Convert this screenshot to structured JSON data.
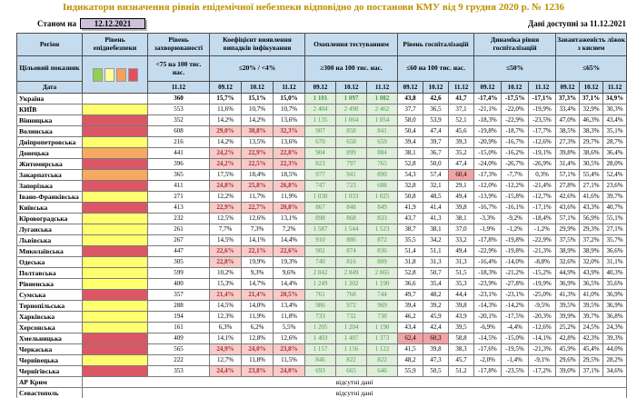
{
  "title": "Індикатори визначення рівнів епідемічної небезпеки відповідно до постанови КМУ від 9 грудня 2020 р. № 1236",
  "meta": {
    "as_of_label": "Станом на",
    "as_of_date": "12.12.2021",
    "available_label": "Дані доступні за",
    "available_date": "11.12.2021"
  },
  "colors": {
    "title_text": "#BF9000",
    "header_bg": "#C5DCEF",
    "date_box_bg": "#CCC1DA",
    "grid": "#7a7a7a",
    "risk_yellow": "#FFFF6E",
    "risk_orange": "#F5A962",
    "risk_red": "#DC5766",
    "good_bg": "#DFEFDA",
    "good_text": "#4E9B48",
    "bad_bg": "#F8CAC8",
    "bad_text": "#9C3734",
    "rose_bg": "#F2A3A3"
  },
  "legend_colors": [
    "#92D050",
    "#FFFF99",
    "#F4A258",
    "#E0505E"
  ],
  "columns": {
    "region": "Регіон",
    "risk_level": "Рівень епіднебезпеки",
    "target_row_label": "Цільовий показник",
    "date_row_label": "Дата",
    "groups": [
      {
        "label": "Рівень захворюваності",
        "target": "<75 на 100 тис. нас.",
        "dates": [
          "11.12"
        ]
      },
      {
        "label": "Коефіцієнт виявлення випадків інфікування",
        "target": "≤20% / <4%",
        "dates": [
          "09.12",
          "10.12",
          "11.12"
        ]
      },
      {
        "label": "Охоплення тестуванням",
        "target": "≥300 на 100 тис. нас.",
        "dates": [
          "09.12",
          "10.12",
          "11.12"
        ]
      },
      {
        "label": "Рівень госпіталізацій",
        "target": "≤60 на 100 тис. нас.",
        "dates": [
          "09.12",
          "10.12",
          "11.12"
        ]
      },
      {
        "label": "Динаміка рівня госпіталізацій",
        "target": "≤50%",
        "dates": [
          "09.12",
          "10.12",
          "11.12"
        ]
      },
      {
        "label": "Завантаженість ліжок з киснем",
        "target": "≤65%",
        "dates": [
          "09.12",
          "10.12",
          "11.12"
        ]
      }
    ]
  },
  "thresholds": {
    "coef_pink_above": 20,
    "hosp_pink_above": 60
  },
  "rows": [
    {
      "name": "Україна",
      "risk": "none",
      "bold": true,
      "incidence": "360",
      "coef": [
        "15,7%",
        "15,1%",
        "15,0%"
      ],
      "testing": [
        "1 101",
        "1 097",
        "1 082"
      ],
      "hosp": [
        "43,8",
        "42,6",
        "41,7"
      ],
      "dyn": [
        "-17,4%",
        "-17,5%",
        "-17,1%"
      ],
      "beds": [
        "37,3%",
        "37,1%",
        "34,9%"
      ]
    },
    {
      "name": "КИЇВ",
      "risk": "yellow",
      "bold": false,
      "incidence": "553",
      "coef": [
        "11,6%",
        "10,7%",
        "10,7%"
      ],
      "testing": [
        "2 404",
        "2 490",
        "2 462"
      ],
      "hosp": [
        "37,7",
        "36,5",
        "37,1"
      ],
      "dyn": [
        "-21,1%",
        "-22,0%",
        "-19,9%"
      ],
      "beds": [
        "33,4%",
        "32,9%",
        "30,3%"
      ]
    },
    {
      "name": "Вінницька",
      "risk": "red",
      "bold": false,
      "incidence": "352",
      "coef": [
        "14,2%",
        "14,2%",
        "13,6%"
      ],
      "testing": [
        "1 135",
        "1 064",
        "1 054"
      ],
      "hosp": [
        "58,0",
        "53,9",
        "52,1"
      ],
      "dyn": [
        "-18,3%",
        "-22,9%",
        "-23,5%"
      ],
      "beds": [
        "47,0%",
        "46,3%",
        "43,4%"
      ]
    },
    {
      "name": "Волинська",
      "risk": "red",
      "bold": false,
      "incidence": "608",
      "coef": [
        "29,0%",
        "30,8%",
        "32,3%"
      ],
      "testing": [
        "907",
        "858",
        "841"
      ],
      "hosp": [
        "50,4",
        "47,4",
        "45,6"
      ],
      "dyn": [
        "-19,8%",
        "-18,7%",
        "-17,7%"
      ],
      "beds": [
        "38,5%",
        "38,3%",
        "35,1%"
      ]
    },
    {
      "name": "Дніпропетровська",
      "risk": "yellow",
      "bold": false,
      "incidence": "216",
      "coef": [
        "14,2%",
        "13,5%",
        "13,6%"
      ],
      "testing": [
        "670",
        "658",
        "659"
      ],
      "hosp": [
        "39,4",
        "39,7",
        "39,3"
      ],
      "dyn": [
        "-20,9%",
        "-16,7%",
        "-12,6%"
      ],
      "beds": [
        "27,3%",
        "29,7%",
        "28,7%"
      ]
    },
    {
      "name": "Донецька",
      "risk": "orange",
      "bold": false,
      "incidence": "441",
      "coef": [
        "24,2%",
        "22,9%",
        "22,8%"
      ],
      "testing": [
        "904",
        "899",
        "884"
      ],
      "hosp": [
        "38,1",
        "36,7",
        "35,2"
      ],
      "dyn": [
        "-15,0%",
        "-16,2%",
        "-19,1%"
      ],
      "beds": [
        "39,8%",
        "38,6%",
        "36,4%"
      ]
    },
    {
      "name": "Житомирська",
      "risk": "red",
      "bold": false,
      "incidence": "396",
      "coef": [
        "24,2%",
        "22,5%",
        "22,3%"
      ],
      "testing": [
        "823",
        "797",
        "765"
      ],
      "hosp": [
        "52,8",
        "50,0",
        "47,4"
      ],
      "dyn": [
        "-24,0%",
        "-26,7%",
        "-26,9%"
      ],
      "beds": [
        "31,4%",
        "30,5%",
        "28,0%"
      ]
    },
    {
      "name": "Закарпатська",
      "risk": "orange",
      "bold": false,
      "incidence": "365",
      "coef": [
        "17,5%",
        "18,4%",
        "18,5%"
      ],
      "testing": [
        "977",
        "941",
        "890"
      ],
      "hosp": [
        "54,3",
        "57,4",
        "60,4"
      ],
      "dyn": [
        "-17,3%",
        "-7,7%",
        "0,3%"
      ],
      "beds": [
        "57,1%",
        "55,4%",
        "52,4%"
      ]
    },
    {
      "name": "Запорізька",
      "risk": "red",
      "bold": false,
      "incidence": "411",
      "coef": [
        "24,8%",
        "25,8%",
        "26,8%"
      ],
      "testing": [
        "747",
        "723",
        "688"
      ],
      "hosp": [
        "32,8",
        "32,1",
        "29,1"
      ],
      "dyn": [
        "-12,0%",
        "-12,2%",
        "-21,4%"
      ],
      "beds": [
        "27,8%",
        "27,1%",
        "23,6%"
      ]
    },
    {
      "name": "Івано-Франківська",
      "risk": "yellow",
      "bold": false,
      "incidence": "271",
      "coef": [
        "12,2%",
        "11,7%",
        "11,9%"
      ],
      "testing": [
        "1 038",
        "1 033",
        "1 025"
      ],
      "hosp": [
        "50,8",
        "48,5",
        "49,4"
      ],
      "dyn": [
        "-13,9%",
        "-15,8%",
        "-12,7%"
      ],
      "beds": [
        "42,6%",
        "41,6%",
        "39,7%"
      ]
    },
    {
      "name": "Київська",
      "risk": "red",
      "bold": false,
      "incidence": "413",
      "coef": [
        "22,9%",
        "22,7%",
        "20,8%"
      ],
      "testing": [
        "867",
        "848",
        "849"
      ],
      "hosp": [
        "41,9",
        "41,4",
        "39,8"
      ],
      "dyn": [
        "-16,7%",
        "-16,1%",
        "-17,1%"
      ],
      "beds": [
        "43,6%",
        "43,3%",
        "40,7%"
      ]
    },
    {
      "name": "Кіровоградська",
      "risk": "yellow",
      "bold": false,
      "incidence": "232",
      "coef": [
        "12,5%",
        "12,6%",
        "13,1%"
      ],
      "testing": [
        "898",
        "868",
        "833"
      ],
      "hosp": [
        "43,7",
        "41,3",
        "38,1"
      ],
      "dyn": [
        "-3,3%",
        "-9,2%",
        "-18,4%"
      ],
      "beds": [
        "57,1%",
        "56,9%",
        "55,1%"
      ]
    },
    {
      "name": "Луганська",
      "risk": "yellow",
      "bold": false,
      "incidence": "261",
      "coef": [
        "7,7%",
        "7,3%",
        "7,2%"
      ],
      "testing": [
        "1 587",
        "1 544",
        "1 523"
      ],
      "hosp": [
        "38,7",
        "38,1",
        "37,0"
      ],
      "dyn": [
        "-1,9%",
        "-1,2%",
        "-1,2%"
      ],
      "beds": [
        "29,9%",
        "29,3%",
        "27,1%"
      ]
    },
    {
      "name": "Львівська",
      "risk": "yellow",
      "bold": false,
      "incidence": "267",
      "coef": [
        "14,5%",
        "14,1%",
        "14,4%"
      ],
      "testing": [
        "910",
        "886",
        "872"
      ],
      "hosp": [
        "35,5",
        "34,2",
        "33,2"
      ],
      "dyn": [
        "-17,8%",
        "-19,8%",
        "-22,9%"
      ],
      "beds": [
        "37,5%",
        "37,2%",
        "35,7%"
      ]
    },
    {
      "name": "Миколаївська",
      "risk": "red",
      "bold": false,
      "incidence": "447",
      "coef": [
        "22,6%",
        "22,1%",
        "22,6%"
      ],
      "testing": [
        "902",
        "874",
        "836"
      ],
      "hosp": [
        "51,4",
        "51,1",
        "49,4"
      ],
      "dyn": [
        "-22,9%",
        "-19,8%",
        "-21,3%"
      ],
      "beds": [
        "38,9%",
        "38,9%",
        "36,6%"
      ]
    },
    {
      "name": "Одеська",
      "risk": "yellow",
      "bold": false,
      "incidence": "305",
      "coef": [
        "22,8%",
        "19,9%",
        "19,3%"
      ],
      "testing": [
        "740",
        "816",
        "809"
      ],
      "hosp": [
        "31,8",
        "31,3",
        "31,3"
      ],
      "dyn": [
        "-16,4%",
        "-14,0%",
        "-8,8%"
      ],
      "beds": [
        "32,6%",
        "32,0%",
        "31,1%"
      ]
    },
    {
      "name": "Полтавська",
      "risk": "yellow",
      "bold": false,
      "incidence": "599",
      "coef": [
        "10,2%",
        "9,3%",
        "9,6%"
      ],
      "testing": [
        "2 842",
        "2 849",
        "2 865"
      ],
      "hosp": [
        "52,8",
        "50,7",
        "51,5"
      ],
      "dyn": [
        "-18,3%",
        "-21,2%",
        "-15,2%"
      ],
      "beds": [
        "44,9%",
        "43,9%",
        "40,3%"
      ]
    },
    {
      "name": "Рівненська",
      "risk": "yellow",
      "bold": false,
      "incidence": "400",
      "coef": [
        "15,3%",
        "14,7%",
        "14,4%"
      ],
      "testing": [
        "1 249",
        "1 202",
        "1 190"
      ],
      "hosp": [
        "36,6",
        "35,4",
        "35,3"
      ],
      "dyn": [
        "-23,9%",
        "-27,8%",
        "-19,9%"
      ],
      "beds": [
        "36,9%",
        "36,5%",
        "35,6%"
      ]
    },
    {
      "name": "Сумська",
      "risk": "red",
      "bold": false,
      "incidence": "357",
      "coef": [
        "21,4%",
        "21,4%",
        "20,5%"
      ],
      "testing": [
        "761",
        "768",
        "744"
      ],
      "hosp": [
        "49,7",
        "48,2",
        "44,4"
      ],
      "dyn": [
        "-23,1%",
        "-23,1%",
        "-25,0%"
      ],
      "beds": [
        "41,3%",
        "41,0%",
        "36,9%"
      ]
    },
    {
      "name": "Тернопільська",
      "risk": "yellow",
      "bold": false,
      "incidence": "288",
      "coef": [
        "14,5%",
        "14,0%",
        "13,4%"
      ],
      "testing": [
        "986",
        "972",
        "969"
      ],
      "hosp": [
        "39,4",
        "39,2",
        "39,8"
      ],
      "dyn": [
        "-14,3%",
        "-14,2%",
        "-9,5%"
      ],
      "beds": [
        "39,5%",
        "39,5%",
        "36,9%"
      ]
    },
    {
      "name": "Харківська",
      "risk": "yellow",
      "bold": false,
      "incidence": "194",
      "coef": [
        "12,3%",
        "11,9%",
        "11,8%"
      ],
      "testing": [
        "733",
        "732",
        "738"
      ],
      "hosp": [
        "46,2",
        "45,9",
        "43,9"
      ],
      "dyn": [
        "-20,1%",
        "-17,5%",
        "-20,3%"
      ],
      "beds": [
        "39,9%",
        "39,7%",
        "36,8%"
      ]
    },
    {
      "name": "Херсонська",
      "risk": "yellow",
      "bold": false,
      "incidence": "161",
      "coef": [
        "6,3%",
        "6,2%",
        "5,5%"
      ],
      "testing": [
        "1 205",
        "1 204",
        "1 190"
      ],
      "hosp": [
        "43,4",
        "42,4",
        "39,5"
      ],
      "dyn": [
        "-6,9%",
        "-4,4%",
        "-12,6%"
      ],
      "beds": [
        "25,2%",
        "24,5%",
        "24,3%"
      ]
    },
    {
      "name": "Хмельницька",
      "risk": "red",
      "bold": false,
      "incidence": "409",
      "coef": [
        "14,1%",
        "12,8%",
        "12,6%"
      ],
      "testing": [
        "1 403",
        "1 407",
        "1 373"
      ],
      "hosp": [
        "62,4",
        "60,3",
        "58,8"
      ],
      "dyn": [
        "-14,5%",
        "-15,0%",
        "-14,1%"
      ],
      "beds": [
        "42,8%",
        "42,3%",
        "39,3%"
      ]
    },
    {
      "name": "Черкаська",
      "risk": "red",
      "bold": false,
      "incidence": "565",
      "coef": [
        "24,9%",
        "24,0%",
        "23,8%"
      ],
      "testing": [
        "1 157",
        "1 156",
        "1 122"
      ],
      "hosp": [
        "41,5",
        "39,8",
        "38,3"
      ],
      "dyn": [
        "-17,6%",
        "-19,5%",
        "-21,3%"
      ],
      "beds": [
        "45,9%",
        "45,4%",
        "44,0%"
      ]
    },
    {
      "name": "Чернівецька",
      "risk": "yellow",
      "bold": false,
      "incidence": "222",
      "coef": [
        "12,7%",
        "11,8%",
        "11,5%"
      ],
      "testing": [
        "846",
        "822",
        "822"
      ],
      "hosp": [
        "48,2",
        "47,3",
        "45,7"
      ],
      "dyn": [
        "-2,0%",
        "-1,4%",
        "-9,1%"
      ],
      "beds": [
        "29,6%",
        "29,5%",
        "28,2%"
      ]
    },
    {
      "name": "Чернігівська",
      "risk": "red",
      "bold": false,
      "incidence": "353",
      "coef": [
        "24,4%",
        "23,8%",
        "24,0%"
      ],
      "testing": [
        "693",
        "665",
        "646"
      ],
      "hosp": [
        "55,9",
        "50,5",
        "51,2"
      ],
      "dyn": [
        "-17,8%",
        "-23,5%",
        "-17,2%"
      ],
      "beds": [
        "39,0%",
        "37,1%",
        "34,6%"
      ]
    }
  ],
  "no_data_rows": [
    {
      "name": "АР Крим",
      "text": "відсутні дані"
    },
    {
      "name": "Севастополь",
      "text": "відсутні дані"
    }
  ]
}
